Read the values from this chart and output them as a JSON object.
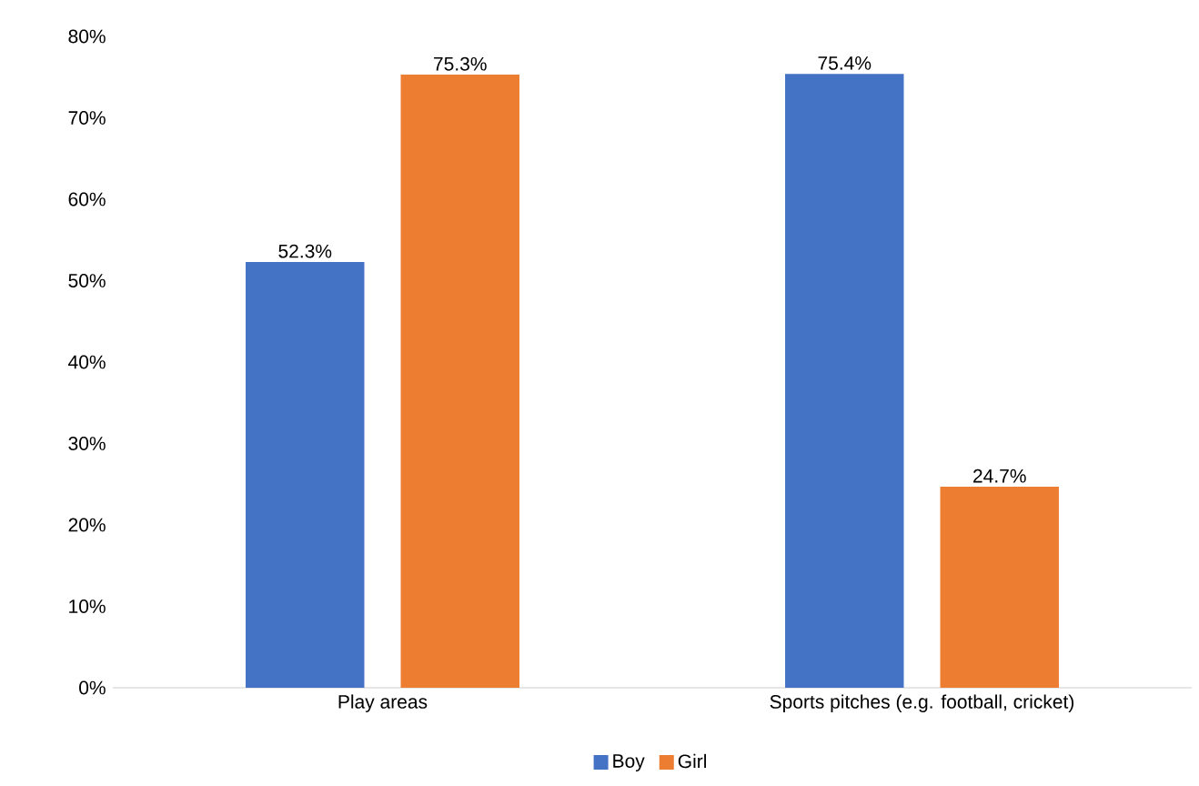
{
  "chart_data": {
    "type": "bar",
    "categories": [
      "Play areas",
      "Sports pitches (e.g. football, cricket)"
    ],
    "series": [
      {
        "name": "Boy",
        "color": "#4472c4",
        "values": [
          52.3,
          75.4
        ],
        "value_labels": [
          "52.3%",
          "75.4%"
        ]
      },
      {
        "name": "Girl",
        "color": "#ed7d31",
        "values": [
          75.3,
          24.7
        ],
        "value_labels": [
          "75.3%",
          "24.7%"
        ]
      }
    ],
    "ylim": [
      0,
      80
    ],
    "yticks": [
      {
        "value": 0,
        "label": "0%"
      },
      {
        "value": 10,
        "label": "10%"
      },
      {
        "value": 20,
        "label": "20%"
      },
      {
        "value": 30,
        "label": "30%"
      },
      {
        "value": 40,
        "label": "40%"
      },
      {
        "value": 50,
        "label": "50%"
      },
      {
        "value": 60,
        "label": "60%"
      },
      {
        "value": 70,
        "label": "70%"
      },
      {
        "value": 80,
        "label": "80%"
      }
    ],
    "legend": "bottom"
  }
}
